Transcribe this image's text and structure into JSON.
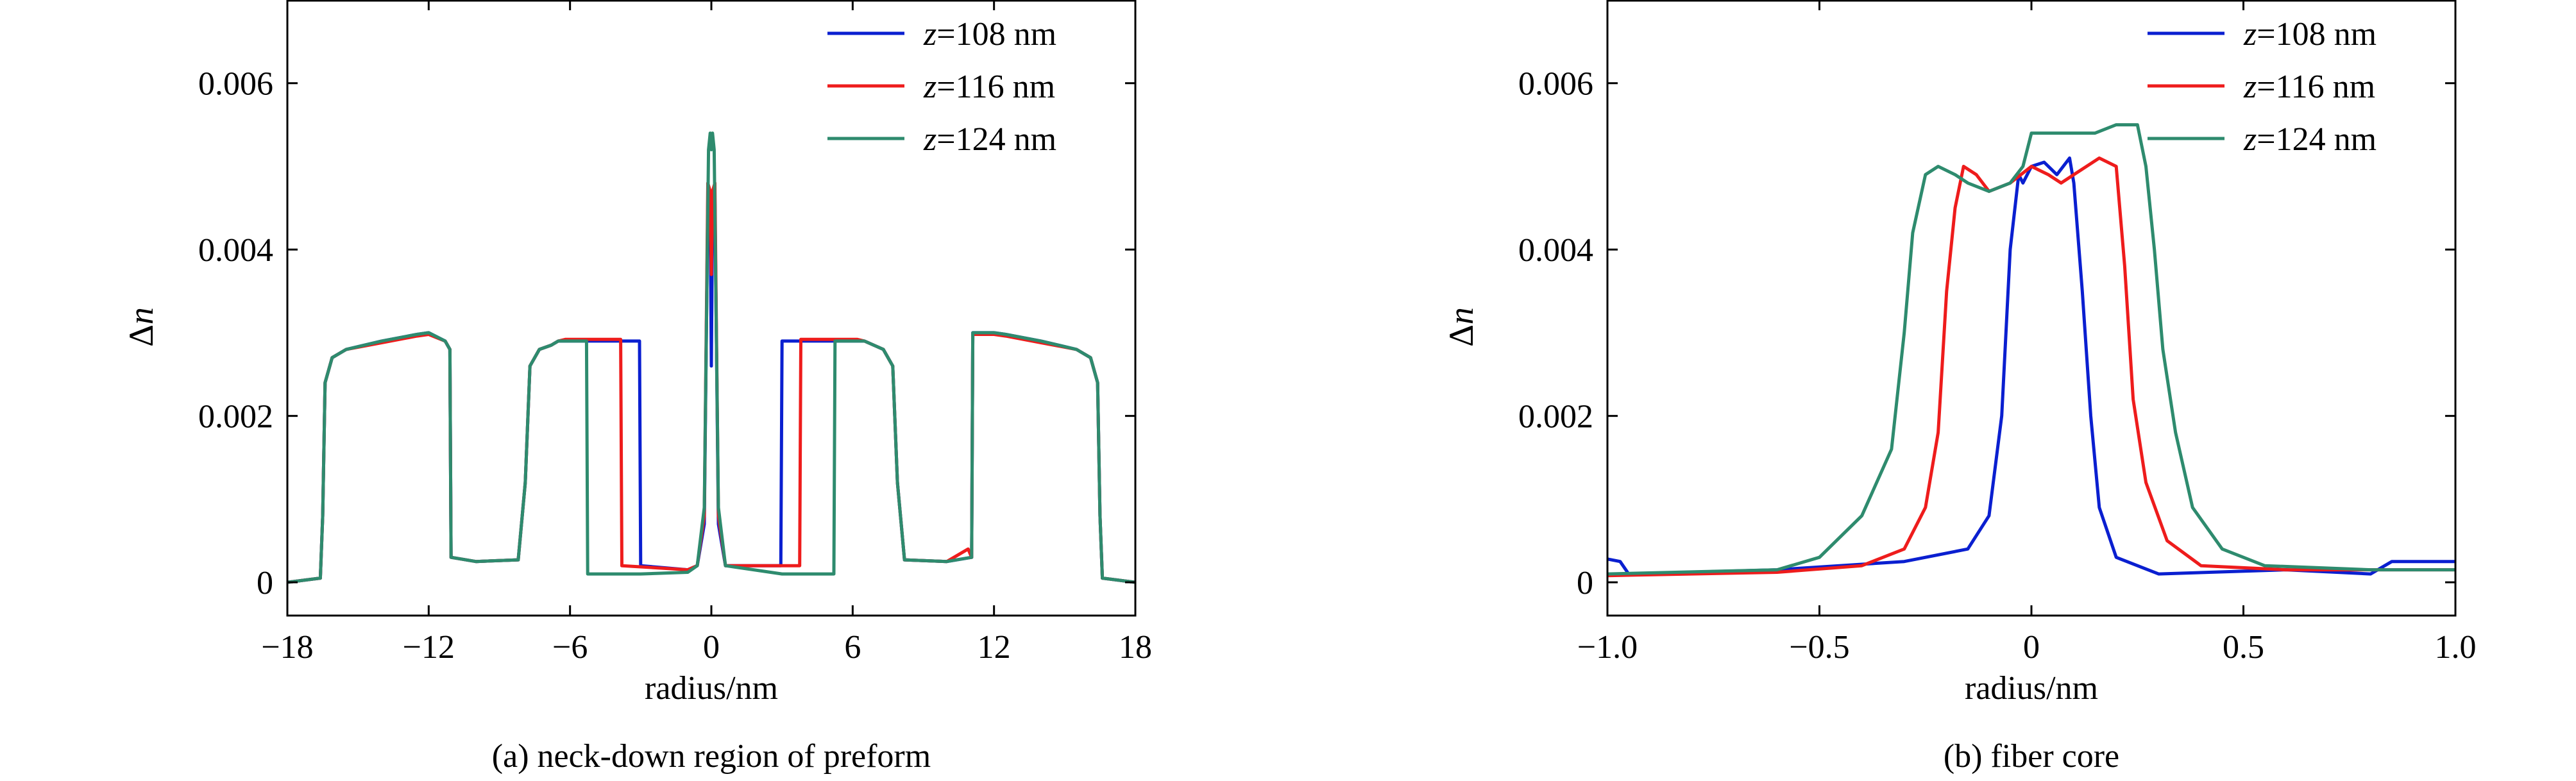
{
  "chart_data": [
    {
      "type": "line",
      "caption": "(a) neck-down region of preform",
      "xlabel": "radius/nm",
      "ylabel_symbol": "Δ",
      "ylabel_var": "n",
      "xlim": [
        -18,
        18
      ],
      "ylim": [
        -0.0004,
        0.007
      ],
      "xticks": [
        -18,
        -12,
        -6,
        0,
        6,
        12,
        18
      ],
      "xtick_labels": [
        "−18",
        "−12",
        "−6",
        "0",
        "6",
        "12",
        "18"
      ],
      "yticks": [
        0,
        0.002,
        0.004,
        0.006
      ],
      "ytick_labels": [
        "0",
        "0.002",
        "0.004",
        "0.006"
      ],
      "legend_position": "top-right",
      "grid": false,
      "series": [
        {
          "name_var": "z",
          "name_rest": "=108 nm",
          "color": "#0a1fd0",
          "points": [
            [
              -18,
              0
            ],
            [
              -16.6,
              5e-05
            ],
            [
              -16.5,
              0.0008
            ],
            [
              -16.4,
              0.0024
            ],
            [
              -16.1,
              0.0027
            ],
            [
              -15.5,
              0.0028
            ],
            [
              -14,
              0.0029
            ],
            [
              -12.5,
              0.00298
            ],
            [
              -12,
              0.003
            ],
            [
              -11.3,
              0.0029
            ],
            [
              -11.1,
              0.0028
            ],
            [
              -11.05,
              0.0003
            ],
            [
              -10,
              0.00025
            ],
            [
              -8.2,
              0.00027
            ],
            [
              -7.9,
              0.0012
            ],
            [
              -7.7,
              0.0026
            ],
            [
              -7.3,
              0.0028
            ],
            [
              -6.8,
              0.00285
            ],
            [
              -6.5,
              0.0029
            ],
            [
              -6.2,
              0.0029
            ],
            [
              -3.05,
              0.0029
            ],
            [
              -3.0,
              0.0002
            ],
            [
              -1.0,
              0.00015
            ],
            [
              -0.6,
              0.0002
            ],
            [
              -0.3,
              0.0007
            ],
            [
              -0.15,
              0.0046
            ],
            [
              -0.05,
              0.0045
            ],
            [
              0,
              0.0026
            ],
            [
              0.05,
              0.0045
            ],
            [
              0.15,
              0.0046
            ],
            [
              0.3,
              0.0007
            ],
            [
              0.6,
              0.0002
            ],
            [
              1.5,
              0.0002
            ],
            [
              2.95,
              0.0002
            ],
            [
              3.0,
              0.0029
            ],
            [
              6.2,
              0.0029
            ],
            [
              6.5,
              0.0029
            ],
            [
              7.3,
              0.0028
            ],
            [
              7.7,
              0.0026
            ],
            [
              7.9,
              0.0012
            ],
            [
              8.2,
              0.00027
            ],
            [
              10,
              0.00025
            ],
            [
              11.05,
              0.0003
            ],
            [
              11.1,
              0.003
            ],
            [
              12,
              0.003
            ],
            [
              12.5,
              0.00298
            ],
            [
              14,
              0.0029
            ],
            [
              15.5,
              0.0028
            ],
            [
              16.1,
              0.0027
            ],
            [
              16.4,
              0.0024
            ],
            [
              16.5,
              0.0008
            ],
            [
              16.6,
              5e-05
            ],
            [
              18,
              0
            ]
          ]
        },
        {
          "name_var": "z",
          "name_rest": "=116 nm",
          "color": "#ee1c1c",
          "points": [
            [
              -18,
              0
            ],
            [
              -16.6,
              5e-05
            ],
            [
              -16.5,
              0.0008
            ],
            [
              -16.4,
              0.0024
            ],
            [
              -16.1,
              0.0027
            ],
            [
              -15.5,
              0.0028
            ],
            [
              -14,
              0.00288
            ],
            [
              -12.5,
              0.00296
            ],
            [
              -12,
              0.00298
            ],
            [
              -11.3,
              0.0029
            ],
            [
              -11.1,
              0.0028
            ],
            [
              -11.05,
              0.0003
            ],
            [
              -10,
              0.00025
            ],
            [
              -8.2,
              0.00027
            ],
            [
              -7.9,
              0.0012
            ],
            [
              -7.7,
              0.0026
            ],
            [
              -7.3,
              0.0028
            ],
            [
              -6.8,
              0.00285
            ],
            [
              -6.5,
              0.0029
            ],
            [
              -6.2,
              0.00292
            ],
            [
              -3.85,
              0.00292
            ],
            [
              -3.8,
              0.0002
            ],
            [
              -1.0,
              0.00015
            ],
            [
              -0.6,
              0.0002
            ],
            [
              -0.3,
              0.0008
            ],
            [
              -0.15,
              0.0048
            ],
            [
              -0.05,
              0.0047
            ],
            [
              0,
              0.0037
            ],
            [
              0.05,
              0.0047
            ],
            [
              0.15,
              0.0048
            ],
            [
              0.3,
              0.0008
            ],
            [
              0.6,
              0.0002
            ],
            [
              2.0,
              0.0002
            ],
            [
              3.75,
              0.0002
            ],
            [
              3.8,
              0.00292
            ],
            [
              6.2,
              0.00292
            ],
            [
              6.5,
              0.0029
            ],
            [
              7.3,
              0.0028
            ],
            [
              7.7,
              0.0026
            ],
            [
              7.9,
              0.0012
            ],
            [
              8.2,
              0.00027
            ],
            [
              10,
              0.00025
            ],
            [
              10.9,
              0.0004
            ],
            [
              11.05,
              0.0003
            ],
            [
              11.1,
              0.00298
            ],
            [
              12,
              0.00298
            ],
            [
              12.5,
              0.00296
            ],
            [
              14,
              0.00288
            ],
            [
              15.5,
              0.0028
            ],
            [
              16.1,
              0.0027
            ],
            [
              16.4,
              0.0024
            ],
            [
              16.5,
              0.0008
            ],
            [
              16.6,
              5e-05
            ],
            [
              18,
              0
            ]
          ]
        },
        {
          "name_var": "z",
          "name_rest": "=124 nm",
          "color": "#2e8b6e",
          "points": [
            [
              -18,
              0
            ],
            [
              -16.6,
              5e-05
            ],
            [
              -16.5,
              0.0008
            ],
            [
              -16.4,
              0.0024
            ],
            [
              -16.1,
              0.0027
            ],
            [
              -15.5,
              0.0028
            ],
            [
              -14,
              0.0029
            ],
            [
              -12.5,
              0.00298
            ],
            [
              -12,
              0.003
            ],
            [
              -11.3,
              0.0029
            ],
            [
              -11.1,
              0.0028
            ],
            [
              -11.05,
              0.0003
            ],
            [
              -10,
              0.00025
            ],
            [
              -8.2,
              0.00027
            ],
            [
              -7.9,
              0.0012
            ],
            [
              -7.7,
              0.0026
            ],
            [
              -7.3,
              0.0028
            ],
            [
              -6.8,
              0.00285
            ],
            [
              -6.5,
              0.0029
            ],
            [
              -5.3,
              0.0029
            ],
            [
              -5.25,
              0.0001
            ],
            [
              -3,
              0.0001
            ],
            [
              -1.0,
              0.00012
            ],
            [
              -0.6,
              0.0002
            ],
            [
              -0.3,
              0.0009
            ],
            [
              -0.12,
              0.0052
            ],
            [
              -0.05,
              0.0054
            ],
            [
              0,
              0.0052
            ],
            [
              0.05,
              0.0054
            ],
            [
              0.12,
              0.0052
            ],
            [
              0.3,
              0.0009
            ],
            [
              0.6,
              0.0002
            ],
            [
              3,
              0.0001
            ],
            [
              5.2,
              0.0001
            ],
            [
              5.25,
              0.0029
            ],
            [
              6.5,
              0.0029
            ],
            [
              7.3,
              0.0028
            ],
            [
              7.7,
              0.0026
            ],
            [
              7.9,
              0.0012
            ],
            [
              8.2,
              0.00027
            ],
            [
              10,
              0.00025
            ],
            [
              11.05,
              0.0003
            ],
            [
              11.1,
              0.003
            ],
            [
              12,
              0.003
            ],
            [
              12.5,
              0.00298
            ],
            [
              14,
              0.0029
            ],
            [
              15.5,
              0.0028
            ],
            [
              16.1,
              0.0027
            ],
            [
              16.4,
              0.0024
            ],
            [
              16.5,
              0.0008
            ],
            [
              16.6,
              5e-05
            ],
            [
              18,
              0
            ]
          ]
        }
      ]
    },
    {
      "type": "line",
      "caption": "(b) fiber core",
      "xlabel": "radius/nm",
      "ylabel_symbol": "Δ",
      "ylabel_var": "n",
      "xlim": [
        -1.0,
        1.0
      ],
      "ylim": [
        -0.0004,
        0.007
      ],
      "xticks": [
        -1.0,
        -0.5,
        0,
        0.5,
        1.0
      ],
      "xtick_labels": [
        "−1.0",
        "−0.5",
        "0",
        "0.5",
        "1.0"
      ],
      "yticks": [
        0,
        0.002,
        0.004,
        0.006
      ],
      "ytick_labels": [
        "0",
        "0.002",
        "0.004",
        "0.006"
      ],
      "legend_position": "top-right",
      "grid": false,
      "series": [
        {
          "name_var": "z",
          "name_rest": "=108 nm",
          "color": "#0a1fd0",
          "points": [
            [
              -1.0,
              0.00028
            ],
            [
              -0.97,
              0.00025
            ],
            [
              -0.95,
              0.0001
            ],
            [
              -0.6,
              0.00015
            ],
            [
              -0.3,
              0.00025
            ],
            [
              -0.15,
              0.0004
            ],
            [
              -0.1,
              0.0008
            ],
            [
              -0.07,
              0.002
            ],
            [
              -0.05,
              0.004
            ],
            [
              -0.03,
              0.0049
            ],
            [
              -0.02,
              0.0048
            ],
            [
              0,
              0.005
            ],
            [
              0.03,
              0.00505
            ],
            [
              0.06,
              0.0049
            ],
            [
              0.09,
              0.0051
            ],
            [
              0.1,
              0.0048
            ],
            [
              0.12,
              0.0035
            ],
            [
              0.14,
              0.002
            ],
            [
              0.16,
              0.0009
            ],
            [
              0.2,
              0.0003
            ],
            [
              0.3,
              0.0001
            ],
            [
              0.6,
              0.00015
            ],
            [
              0.8,
              0.0001
            ],
            [
              0.85,
              0.00025
            ],
            [
              1.0,
              0.00025
            ]
          ]
        },
        {
          "name_var": "z",
          "name_rest": "=116 nm",
          "color": "#ee1c1c",
          "points": [
            [
              -1.0,
              8e-05
            ],
            [
              -0.6,
              0.00012
            ],
            [
              -0.4,
              0.0002
            ],
            [
              -0.3,
              0.0004
            ],
            [
              -0.25,
              0.0009
            ],
            [
              -0.22,
              0.0018
            ],
            [
              -0.2,
              0.0035
            ],
            [
              -0.18,
              0.0045
            ],
            [
              -0.16,
              0.005
            ],
            [
              -0.13,
              0.0049
            ],
            [
              -0.1,
              0.0047
            ],
            [
              -0.05,
              0.0048
            ],
            [
              0,
              0.005
            ],
            [
              0.04,
              0.0049
            ],
            [
              0.07,
              0.0048
            ],
            [
              0.1,
              0.0049
            ],
            [
              0.16,
              0.0051
            ],
            [
              0.2,
              0.005
            ],
            [
              0.22,
              0.0038
            ],
            [
              0.24,
              0.0022
            ],
            [
              0.27,
              0.0012
            ],
            [
              0.32,
              0.0005
            ],
            [
              0.4,
              0.0002
            ],
            [
              0.6,
              0.00015
            ],
            [
              1.0,
              0.00015
            ]
          ]
        },
        {
          "name_var": "z",
          "name_rest": "=124 nm",
          "color": "#2e8b6e",
          "points": [
            [
              -1.0,
              0.0001
            ],
            [
              -0.6,
              0.00015
            ],
            [
              -0.5,
              0.0003
            ],
            [
              -0.4,
              0.0008
            ],
            [
              -0.33,
              0.0016
            ],
            [
              -0.3,
              0.003
            ],
            [
              -0.28,
              0.0042
            ],
            [
              -0.25,
              0.0049
            ],
            [
              -0.22,
              0.005
            ],
            [
              -0.18,
              0.0049
            ],
            [
              -0.15,
              0.0048
            ],
            [
              -0.1,
              0.0047
            ],
            [
              -0.05,
              0.0048
            ],
            [
              -0.02,
              0.005
            ],
            [
              0,
              0.0054
            ],
            [
              0.05,
              0.0054
            ],
            [
              0.1,
              0.0054
            ],
            [
              0.15,
              0.0054
            ],
            [
              0.2,
              0.0055
            ],
            [
              0.25,
              0.0055
            ],
            [
              0.27,
              0.005
            ],
            [
              0.29,
              0.004
            ],
            [
              0.31,
              0.0028
            ],
            [
              0.34,
              0.0018
            ],
            [
              0.38,
              0.0009
            ],
            [
              0.45,
              0.0004
            ],
            [
              0.55,
              0.0002
            ],
            [
              0.8,
              0.00015
            ],
            [
              1.0,
              0.00015
            ]
          ]
        }
      ]
    }
  ]
}
